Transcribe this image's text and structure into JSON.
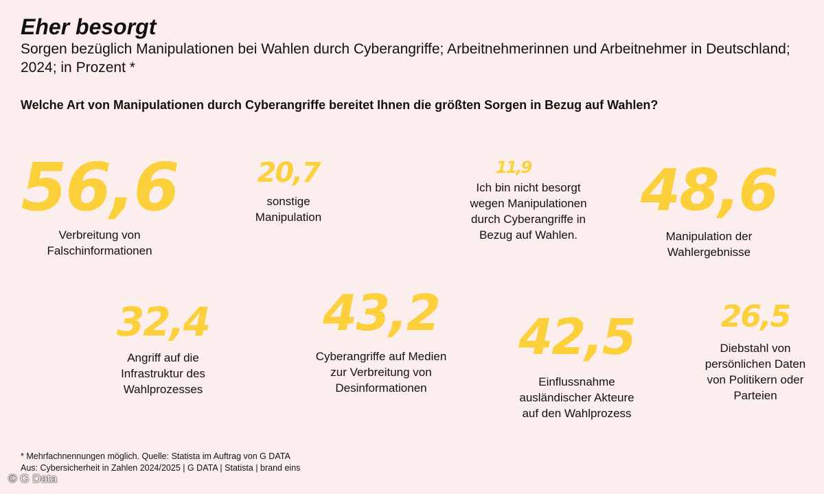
{
  "title": "Eher besorgt",
  "subtitle": "Sorgen bezüglich Manipulationen bei Wahlen durch Cyberangriffe; Arbeitnehmerinnen und Arbeitnehmer in Deutschland; 2024; in Prozent *",
  "question": "Welche Art von Manipulationen durch Cyberangriffe bereitet Ihnen die größten Sorgen in Bezug auf Wahlen?",
  "colors": {
    "value": "#fcd03b",
    "background": "#fbeeed"
  },
  "chart_data": {
    "type": "table",
    "unit": "Prozent",
    "items": [
      {
        "value": 56.6,
        "display": "56,6",
        "label": "Verbreitung von Falschinformationen"
      },
      {
        "value": 20.7,
        "display": "20,7",
        "label": "sonstige Manipulation"
      },
      {
        "value": 11.9,
        "display": "11,9",
        "label": "Ich bin nicht besorgt wegen Manipulationen durch Cyberangriffe in Bezug auf Wahlen."
      },
      {
        "value": 48.6,
        "display": "48,6",
        "label": "Manipulation der Wahlergebnisse"
      },
      {
        "value": 32.4,
        "display": "32,4",
        "label": "Angriff auf die Infrastruktur des Wahlprozesses"
      },
      {
        "value": 43.2,
        "display": "43,2",
        "label": "Cyberangriffe auf Medien zur Verbreitung von Desinformationen"
      },
      {
        "value": 42.5,
        "display": "42,5",
        "label": "Einflussnahme ausländischer Akteure auf den Wahlprozess"
      },
      {
        "value": 26.5,
        "display": "26,5",
        "label": "Diebstahl von persönlichen Daten von Politikern oder Parteien"
      }
    ]
  },
  "footnote": {
    "line1": "* Mehrfachnennungen möglich. Quelle: Statista im Auftrag von G DATA",
    "line2": "Aus: Cybersicherheit in Zahlen 2024/2025 | G DATA | Statista | brand eins"
  },
  "copyright": "© G Data"
}
